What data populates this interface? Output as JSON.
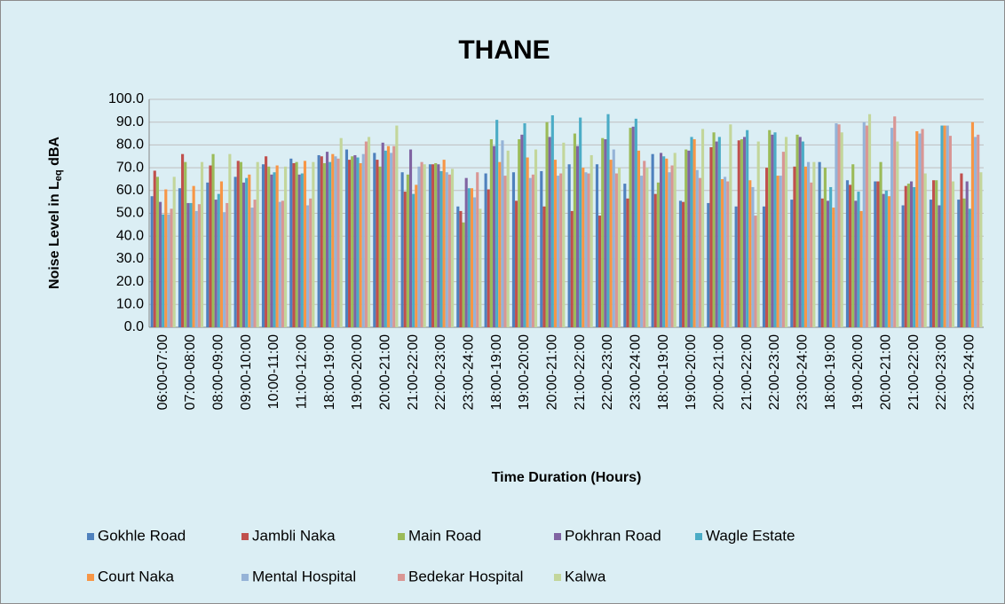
{
  "chart_data": {
    "type": "bar",
    "title": "THANE",
    "xlabel": "Time Duration (Hours)",
    "ylabel": [
      "Noise Level in L",
      "eq",
      " dBA"
    ],
    "categories": [
      "06:00-07:00",
      "07:00-08:00",
      "08:00-09:00",
      "09:00-10:00",
      "10:00-11:00",
      "11:00-12:00",
      "18:00-19:00",
      "19:00-20:00",
      "20:00-21:00",
      "21:00-22:00",
      "22:00-23:00",
      "23:00-24:00",
      "18:00-19:00",
      "19:00-20:00",
      "20:00-21:00",
      "21:00-22:00",
      "22:00-23:00",
      "23:00-24:00",
      "18:00-19:00",
      "19:00-20:00",
      "20:00-21:00",
      "21:00-22:00",
      "22:00-23:00",
      "23:00-24:00",
      "18:00-19:00",
      "19:00-20:00",
      "20:00-21:00",
      "21:00-22:00",
      "22:00-23:00",
      "23:00-24:00"
    ],
    "series": [
      {
        "name": "Gokhle Road",
        "color": "#4f81bd",
        "values": [
          57.5,
          61,
          63.5,
          66,
          71.5,
          74,
          75.5,
          78,
          76.5,
          68,
          71.5,
          53,
          67.5,
          68,
          68.5,
          71.5,
          71.5,
          63,
          76,
          55.5,
          54.5,
          53,
          53,
          56,
          72.5,
          64.5,
          64,
          53.5,
          56,
          56
        ]
      },
      {
        "name": "Jambli Naka",
        "color": "#c0504d",
        "values": [
          68.7,
          76,
          71,
          73,
          75,
          72,
          75,
          73.5,
          73.5,
          59.5,
          71.5,
          51,
          60.5,
          55.5,
          53,
          51,
          49,
          56.5,
          58.5,
          55,
          79,
          82,
          70,
          70.5,
          56.5,
          62.5,
          64,
          62,
          64.5,
          67.5
        ]
      },
      {
        "name": "Main Road",
        "color": "#9bbb59",
        "values": [
          66,
          72.5,
          76,
          72.5,
          70.5,
          72.5,
          72,
          75,
          70.5,
          67,
          72,
          46,
          82.5,
          82.5,
          90,
          85,
          83,
          87.5,
          63.5,
          78,
          85.5,
          82.5,
          86.5,
          84.5,
          70,
          71.5,
          72.5,
          63,
          64.5,
          56.5
        ]
      },
      {
        "name": "Pokhran Road",
        "color": "#8064a2",
        "values": [
          55,
          54.5,
          56,
          63.5,
          67,
          67,
          77,
          75.5,
          81,
          78,
          71.5,
          65.5,
          79.5,
          84.5,
          83.5,
          79.5,
          82.5,
          88,
          76.5,
          77.5,
          81.5,
          83.5,
          84.5,
          83.5,
          55.5,
          55.5,
          58.5,
          64,
          53.5,
          64
        ]
      },
      {
        "name": "Wagle Estate",
        "color": "#4bacc6",
        "values": [
          49.5,
          54.5,
          58.5,
          65.5,
          68,
          67.5,
          72.5,
          74.5,
          77.5,
          58.5,
          68.5,
          61,
          91,
          89.5,
          93,
          92,
          93.5,
          91.5,
          75,
          83.5,
          83.5,
          86.5,
          85.5,
          81.5,
          61.5,
          59.5,
          60,
          61.5,
          88.5,
          52
        ]
      },
      {
        "name": "Court Naka",
        "color": "#f79646",
        "values": [
          60.5,
          62,
          64,
          67,
          71,
          73,
          76,
          72,
          79.5,
          62.5,
          73.5,
          61,
          72.5,
          74.5,
          73.5,
          70,
          73.5,
          77.5,
          74,
          82.5,
          65,
          64.5,
          66.5,
          70.5,
          52.5,
          51,
          57.5,
          86,
          88.5,
          90
        ]
      },
      {
        "name": "Mental Hospital",
        "color": "#95b3d7",
        "values": [
          49.5,
          51,
          50.5,
          52.5,
          55,
          53.5,
          75,
          76,
          76.5,
          70.5,
          68,
          57,
          82,
          65.5,
          66.5,
          68,
          78,
          66.5,
          68,
          69,
          66,
          61.5,
          66.5,
          72.5,
          89.5,
          90,
          87.5,
          85,
          88.5,
          83.5
        ]
      },
      {
        "name": "Bedekar Hospital",
        "color": "#d99694",
        "values": [
          52,
          54,
          54.5,
          56,
          55.5,
          56.5,
          74,
          81.5,
          79.5,
          72.5,
          67,
          68,
          66.5,
          67,
          67.5,
          67.5,
          67.5,
          73,
          71,
          65.5,
          64,
          49,
          77,
          63.5,
          89,
          88.5,
          92.5,
          87,
          84,
          84.5
        ]
      },
      {
        "name": "Kalwa",
        "color": "#c3d69b",
        "values": [
          66,
          72.5,
          76,
          72.5,
          70.5,
          72.5,
          83,
          83.5,
          88.5,
          71.5,
          69.5,
          52,
          77.5,
          78,
          81,
          75.5,
          70,
          70,
          76.5,
          87,
          89,
          81.5,
          83.5,
          72.5,
          85.5,
          93.5,
          81.5,
          67.5,
          64,
          68
        ]
      }
    ],
    "ylim": [
      0,
      100
    ],
    "yticks": [
      {
        "value": 0,
        "label": "0.0"
      },
      {
        "value": 10,
        "label": "10.0"
      },
      {
        "value": 20,
        "label": "20.0"
      },
      {
        "value": 30,
        "label": "30.0"
      },
      {
        "value": 40,
        "label": "40.0"
      },
      {
        "value": 50,
        "label": "50.0"
      },
      {
        "value": 60,
        "label": "60.0"
      },
      {
        "value": 70,
        "label": "70.0"
      },
      {
        "value": 80,
        "label": "80.0"
      },
      {
        "value": 90,
        "label": "90.0"
      },
      {
        "value": 100,
        "label": "100.0"
      }
    ],
    "grid": true,
    "legend": "bottom"
  }
}
